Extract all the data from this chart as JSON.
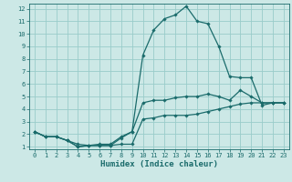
{
  "xlabel": "Humidex (Indice chaleur)",
  "bg_color": "#cce8e6",
  "grid_color": "#99ccca",
  "line_color": "#1a6b6b",
  "xlim": [
    -0.5,
    23.5
  ],
  "ylim": [
    0.8,
    12.4
  ],
  "xticks": [
    0,
    1,
    2,
    3,
    4,
    5,
    6,
    7,
    8,
    9,
    10,
    11,
    12,
    13,
    14,
    15,
    16,
    17,
    18,
    19,
    20,
    21,
    22,
    23
  ],
  "yticks": [
    1,
    2,
    3,
    4,
    5,
    6,
    7,
    8,
    9,
    10,
    11,
    12
  ],
  "line1_x": [
    0,
    1,
    2,
    3,
    4,
    5,
    6,
    7,
    8,
    9,
    10,
    11,
    12,
    13,
    14,
    15,
    16,
    17,
    18,
    19,
    20,
    21,
    22,
    23
  ],
  "line1_y": [
    2.2,
    1.8,
    1.8,
    1.5,
    1.0,
    1.1,
    1.1,
    1.1,
    1.2,
    1.2,
    3.2,
    3.3,
    3.5,
    3.5,
    3.5,
    3.6,
    3.8,
    4.0,
    4.2,
    4.4,
    4.5,
    4.5,
    4.5,
    4.5
  ],
  "line2_x": [
    0,
    1,
    2,
    3,
    4,
    5,
    6,
    7,
    8,
    9,
    10,
    11,
    12,
    13,
    14,
    15,
    16,
    17,
    18,
    19,
    20,
    21,
    22,
    23
  ],
  "line2_y": [
    2.2,
    1.8,
    1.8,
    1.5,
    1.2,
    1.1,
    1.2,
    1.2,
    1.8,
    2.2,
    4.5,
    4.7,
    4.7,
    4.9,
    5.0,
    5.0,
    5.2,
    5.0,
    4.7,
    5.5,
    5.0,
    4.5,
    4.5,
    4.5
  ],
  "line3_x": [
    0,
    1,
    2,
    3,
    4,
    5,
    6,
    7,
    8,
    9,
    10,
    11,
    12,
    13,
    14,
    15,
    16,
    17,
    18,
    19,
    20,
    21,
    22,
    23
  ],
  "line3_y": [
    2.2,
    1.8,
    1.8,
    1.5,
    1.0,
    1.1,
    1.1,
    1.1,
    1.7,
    2.2,
    8.3,
    10.3,
    11.2,
    11.5,
    12.2,
    11.0,
    10.8,
    9.0,
    6.6,
    6.5,
    6.5,
    4.3,
    4.5,
    4.5
  ],
  "marker": "D",
  "markersize": 1.8,
  "linewidth": 0.9,
  "xlabel_fontsize": 6.5,
  "tick_fontsize": 5.0
}
